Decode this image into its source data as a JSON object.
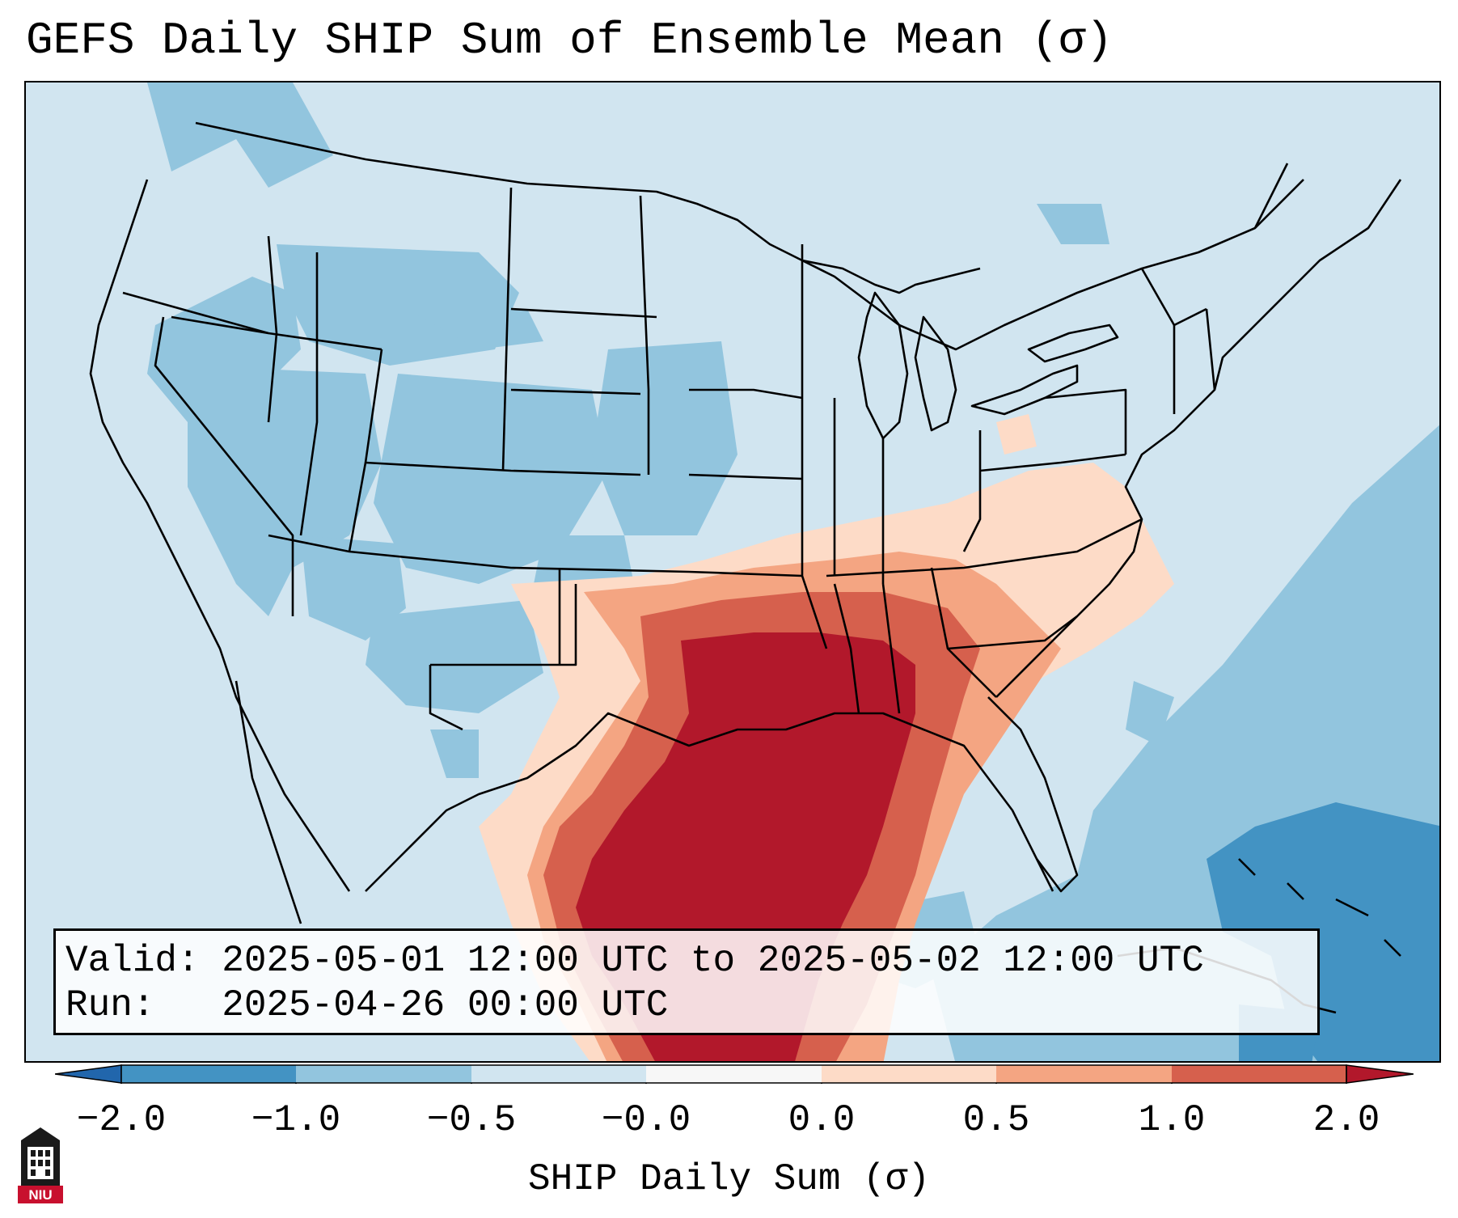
{
  "title": "GEFS Daily SHIP Sum of Ensemble Mean (σ)",
  "info": {
    "valid": "Valid: 2025-05-01 12:00 UTC to 2025-05-02 12:00 UTC",
    "run": "Run:   2025-04-26 00:00 UTC"
  },
  "colorbar": {
    "label": "SHIP Daily Sum (σ)",
    "ticks": [
      "−2.0",
      "−1.0",
      "−0.5",
      "−0.0",
      "0.0",
      "0.5",
      "1.0",
      "2.0"
    ],
    "colors": [
      "#4393c3",
      "#92c5de",
      "#d1e5f0",
      "#f7f7f7",
      "#fddbc7",
      "#f4a582",
      "#d6604d",
      "#b2182b"
    ],
    "extend_low_color": "#2166ac",
    "extend_high_color": "#b2182b"
  },
  "logo": {
    "text": "NIU",
    "color": "#c8102e"
  }
}
